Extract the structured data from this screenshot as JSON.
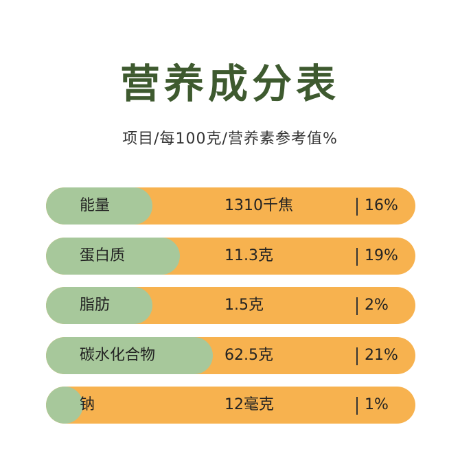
{
  "title": "营养成分表",
  "subtitle": "项目/每100克/营养素参考值%",
  "colors": {
    "title": "#3e5a2f",
    "row_background": "#f7b24f",
    "label_pill": "#a7c89b"
  },
  "rows": [
    {
      "name": "能量",
      "amount": "1310千焦",
      "percent": "16%"
    },
    {
      "name": "蛋白质",
      "amount": "11.3克",
      "percent": "19%"
    },
    {
      "name": "脂肪",
      "amount": "1.5克",
      "percent": "2%"
    },
    {
      "name": "碳水化合物",
      "amount": "62.5克",
      "percent": "21%"
    },
    {
      "name": "钠",
      "amount": "12毫克",
      "percent": "1%"
    }
  ]
}
